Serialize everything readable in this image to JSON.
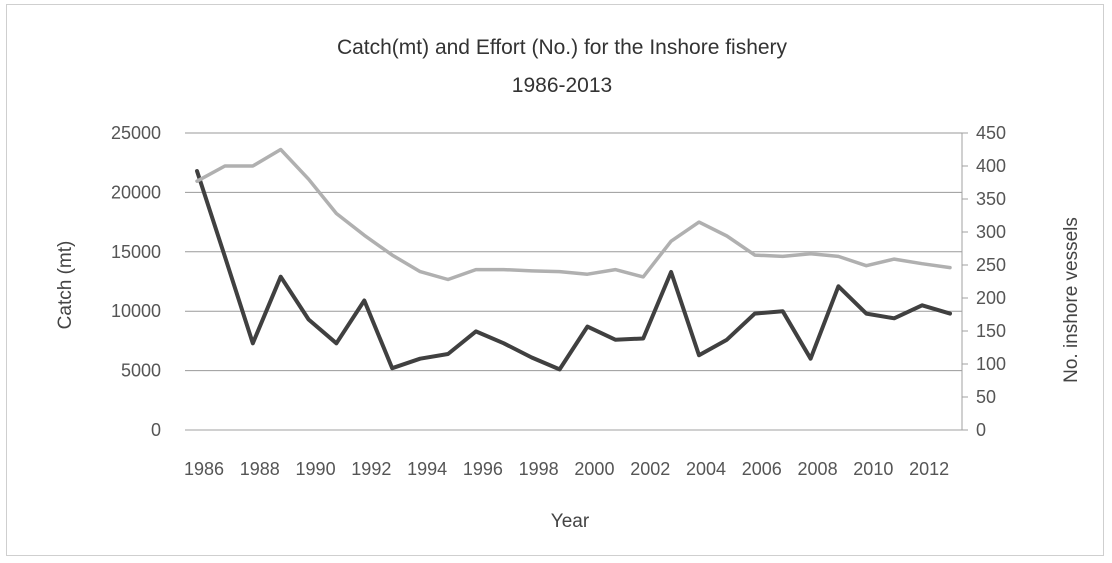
{
  "chart_data": {
    "type": "line",
    "title": "Catch(mt) and Effort (No.) for the Inshore fishery",
    "subtitle": "1986-2013",
    "xlabel": "Year",
    "ylabel_left": "Catch (mt)",
    "ylabel_right": "No. inshore vessels",
    "x": [
      1986,
      1987,
      1988,
      1989,
      1990,
      1991,
      1992,
      1993,
      1994,
      1995,
      1996,
      1997,
      1998,
      1999,
      2000,
      2001,
      2002,
      2003,
      2004,
      2005,
      2006,
      2007,
      2008,
      2009,
      2010,
      2011,
      2012,
      2013
    ],
    "x_tick_labels": [
      "1986",
      "1988",
      "1990",
      "1992",
      "1994",
      "1996",
      "1998",
      "2000",
      "2002",
      "2004",
      "2006",
      "2008",
      "2010",
      "2012"
    ],
    "ylim_left": [
      0,
      25000
    ],
    "yticks_left": [
      "0",
      "5000",
      "10000",
      "15000",
      "20000",
      "25000"
    ],
    "ylim_right": [
      0,
      450
    ],
    "yticks_right": [
      "0",
      "50",
      "100",
      "150",
      "200",
      "250",
      "300",
      "350",
      "400",
      "450"
    ],
    "grid": true,
    "series": [
      {
        "axis": "left",
        "color": "#404040",
        "values": [
          21800,
          14600,
          7300,
          12900,
          9300,
          7300,
          10900,
          5200,
          6000,
          6400,
          8300,
          7300,
          6100,
          5100,
          8700,
          7600,
          7700,
          13300,
          6300,
          7600,
          9800,
          10000,
          6000,
          12100,
          9800,
          9400,
          10500,
          9800
        ]
      },
      {
        "axis": "right",
        "color": "#b0b0b0",
        "values": [
          377,
          400,
          400,
          425,
          380,
          328,
          295,
          265,
          240,
          228,
          243,
          243,
          241,
          240,
          236,
          243,
          232,
          286,
          315,
          294,
          265,
          263,
          267,
          263,
          249,
          259,
          252,
          246
        ]
      }
    ]
  }
}
